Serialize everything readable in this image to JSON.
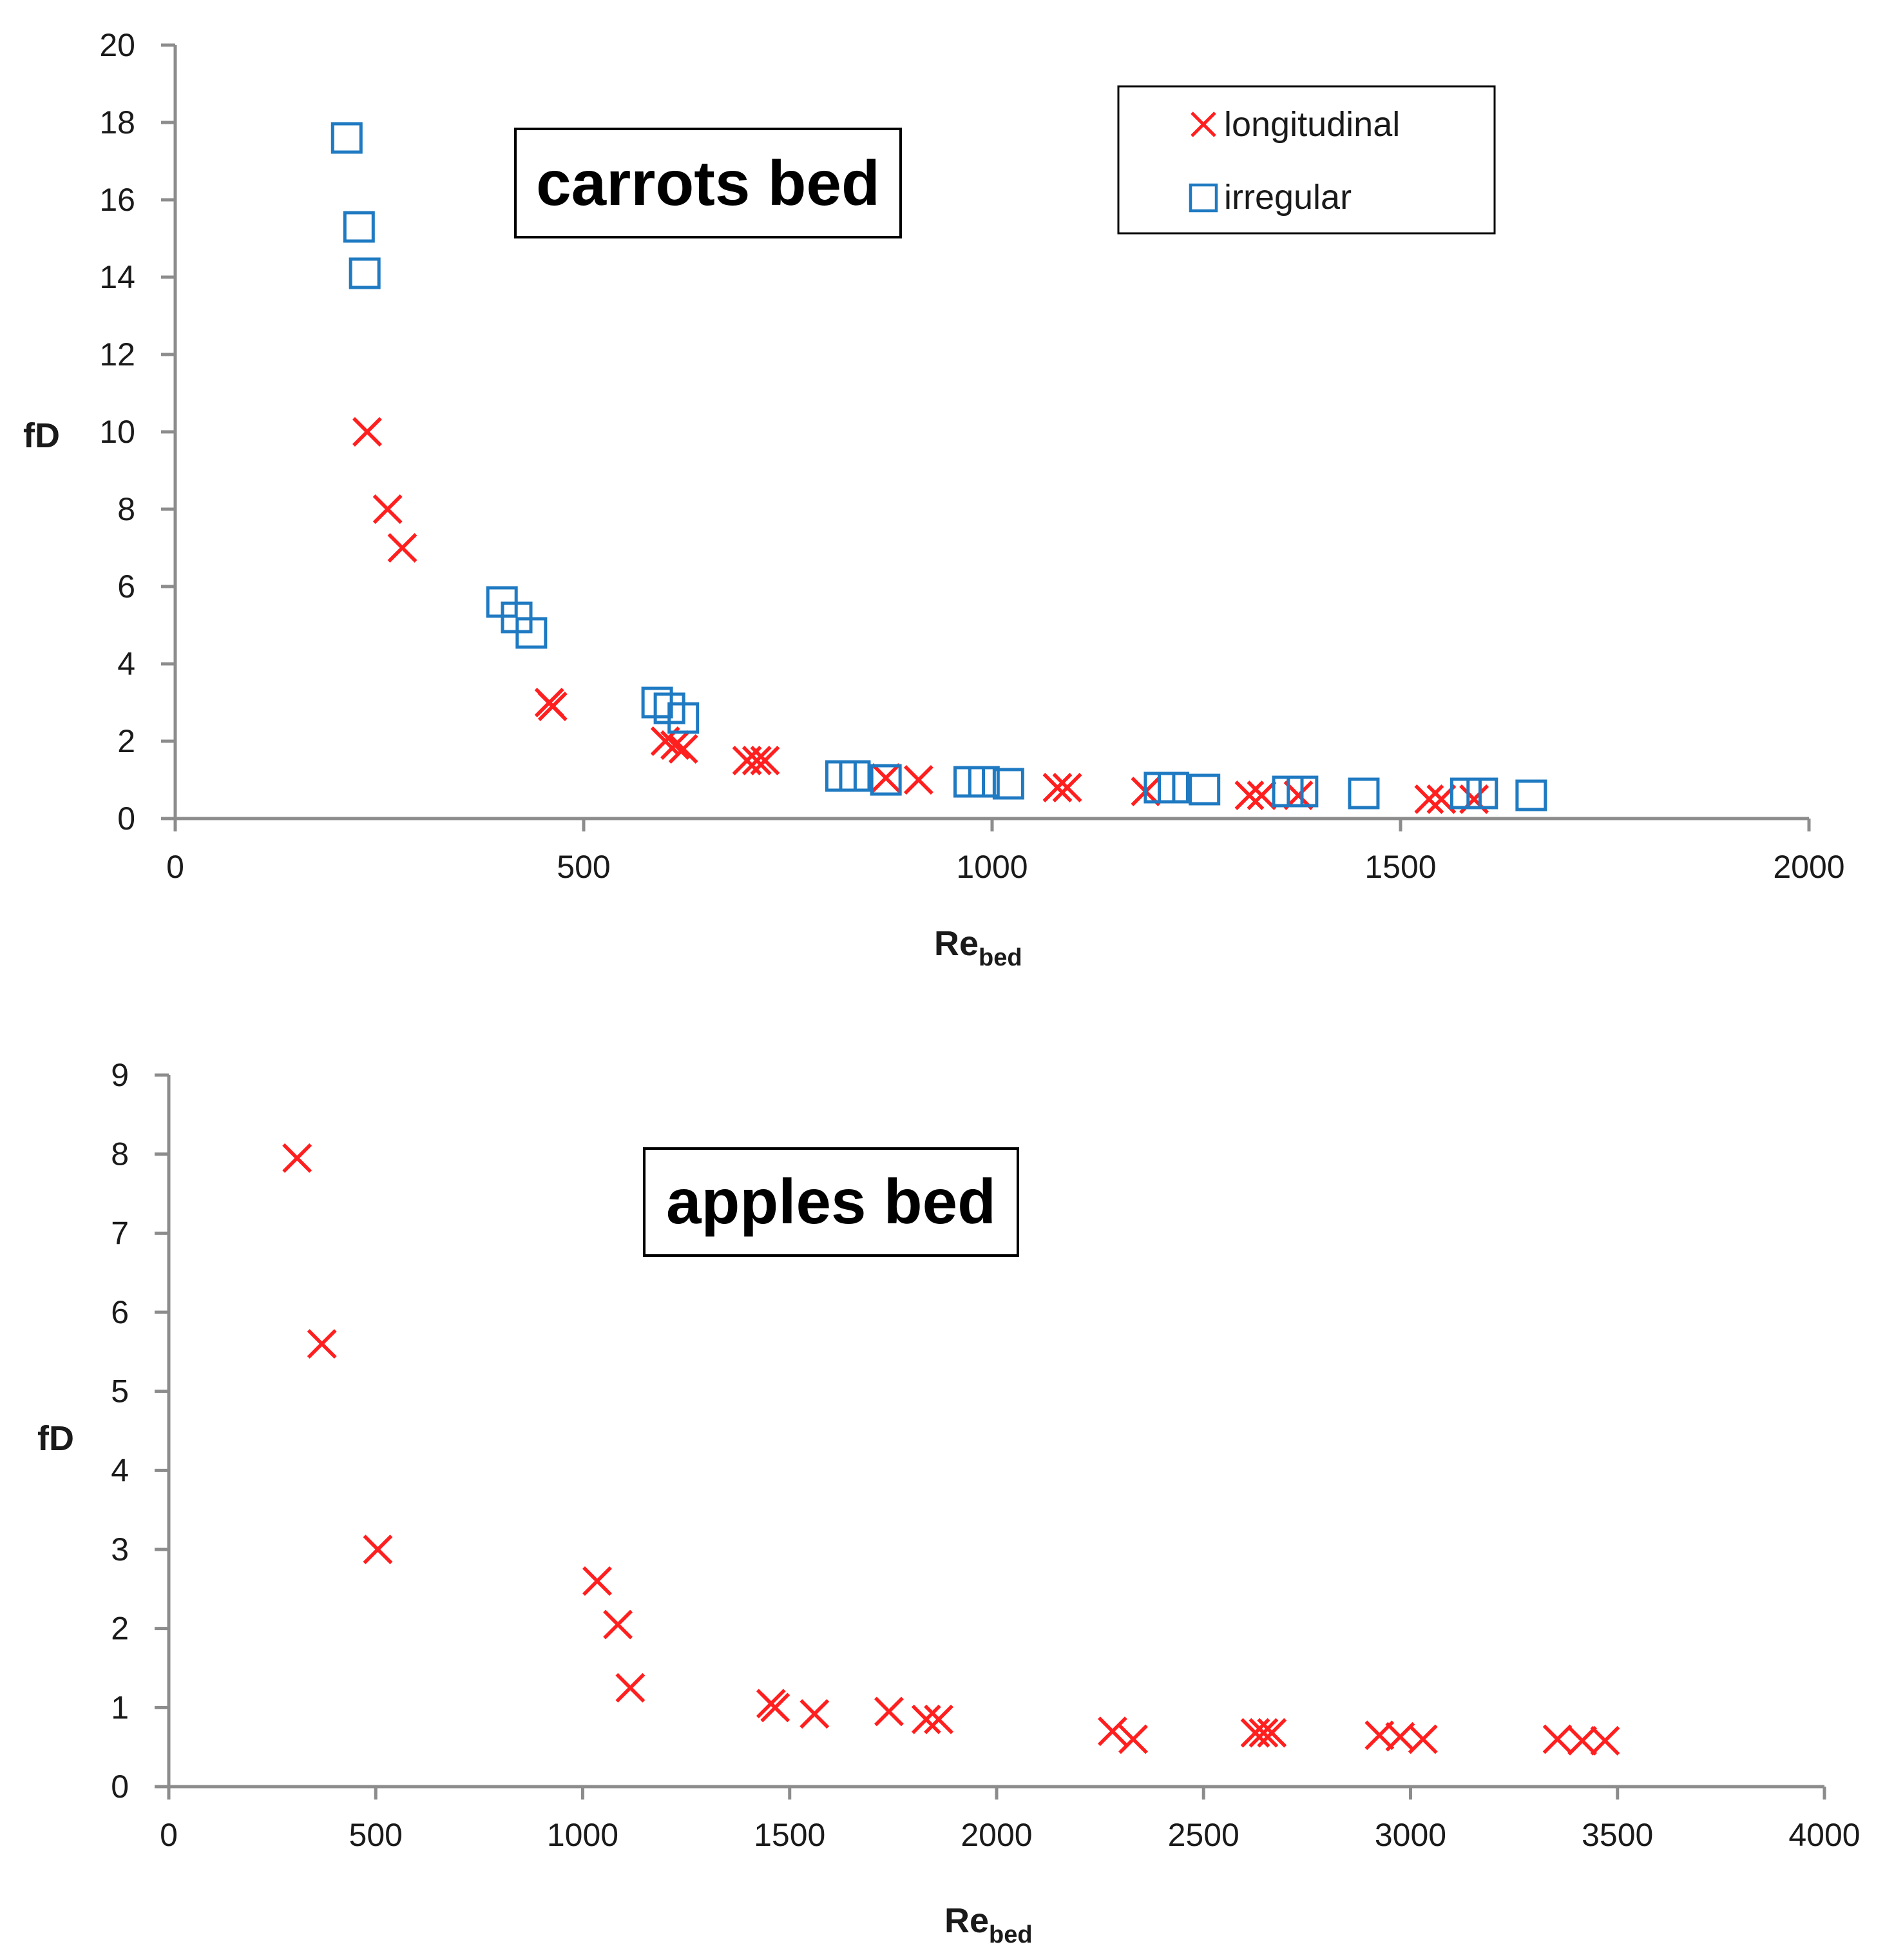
{
  "colors": {
    "longitudinal": "#ff1f1f",
    "irregular": "#1f7ac2",
    "axis": "#8c8c8c"
  },
  "chart_data": [
    {
      "type": "scatter",
      "title": "carrots bed",
      "xlabel": "Re",
      "xlabel_sub": "bed",
      "ylabel": "fD",
      "xlim": [
        0,
        2000
      ],
      "ylim": [
        0,
        20
      ],
      "xticks": [
        "0",
        "500",
        "1000",
        "1500",
        "2000"
      ],
      "yticks": [
        "0",
        "2",
        "4",
        "6",
        "8",
        "10",
        "12",
        "14",
        "16",
        "18",
        "20"
      ],
      "legend": {
        "position": "top-right",
        "entries": [
          "longitudinal",
          "irregular"
        ]
      },
      "series": [
        {
          "name": "longitudinal",
          "marker": "x",
          "points": [
            [
              235,
              10
            ],
            [
              260,
              8
            ],
            [
              278,
              7
            ],
            [
              458,
              3.0
            ],
            [
              462,
              2.9
            ],
            [
              600,
              2.0
            ],
            [
              612,
              1.9
            ],
            [
              622,
              1.8
            ],
            [
              700,
              1.5
            ],
            [
              712,
              1.5
            ],
            [
              722,
              1.5
            ],
            [
              870,
              1.05
            ],
            [
              910,
              1.0
            ],
            [
              1080,
              0.8
            ],
            [
              1092,
              0.8
            ],
            [
              1188,
              0.7
            ],
            [
              1315,
              0.6
            ],
            [
              1330,
              0.6
            ],
            [
              1375,
              0.6
            ],
            [
              1535,
              0.5
            ],
            [
              1550,
              0.5
            ],
            [
              1590,
              0.5
            ]
          ]
        },
        {
          "name": "irregular",
          "marker": "square",
          "points": [
            [
              210,
              17.6
            ],
            [
              225,
              15.3
            ],
            [
              232,
              14.1
            ],
            [
              400,
              5.6
            ],
            [
              418,
              5.2
            ],
            [
              436,
              4.8
            ],
            [
              590,
              3.0
            ],
            [
              605,
              2.85
            ],
            [
              622,
              2.6
            ],
            [
              815,
              1.1
            ],
            [
              832,
              1.1
            ],
            [
              870,
              1.0
            ],
            [
              972,
              0.95
            ],
            [
              990,
              0.95
            ],
            [
              1020,
              0.9
            ],
            [
              1205,
              0.8
            ],
            [
              1222,
              0.8
            ],
            [
              1260,
              0.75
            ],
            [
              1362,
              0.7
            ],
            [
              1380,
              0.7
            ],
            [
              1455,
              0.65
            ],
            [
              1580,
              0.65
            ],
            [
              1600,
              0.65
            ],
            [
              1660,
              0.6
            ]
          ]
        }
      ]
    },
    {
      "type": "scatter",
      "title": "apples bed",
      "xlabel": "Re",
      "xlabel_sub": "bed",
      "ylabel": "fD",
      "xlim": [
        0,
        4000
      ],
      "ylim": [
        0,
        9
      ],
      "xticks": [
        "0",
        "500",
        "1000",
        "1500",
        "2000",
        "2500",
        "3000",
        "3500",
        "4000"
      ],
      "yticks": [
        "0",
        "1",
        "2",
        "3",
        "4",
        "5",
        "6",
        "7",
        "8",
        "9"
      ],
      "series": [
        {
          "name": "longitudinal",
          "marker": "x",
          "points": [
            [
              310,
              7.95
            ],
            [
              370,
              5.6
            ],
            [
              505,
              3.0
            ],
            [
              1035,
              2.6
            ],
            [
              1085,
              2.05
            ],
            [
              1115,
              1.25
            ],
            [
              1455,
              1.05
            ],
            [
              1465,
              1.0
            ],
            [
              1560,
              0.92
            ],
            [
              1740,
              0.95
            ],
            [
              1830,
              0.85
            ],
            [
              1860,
              0.85
            ],
            [
              2280,
              0.7
            ],
            [
              2330,
              0.6
            ],
            [
              2625,
              0.68
            ],
            [
              2645,
              0.68
            ],
            [
              2665,
              0.68
            ],
            [
              2925,
              0.65
            ],
            [
              2975,
              0.63
            ],
            [
              3030,
              0.6
            ],
            [
              3355,
              0.6
            ],
            [
              3415,
              0.58
            ],
            [
              3470,
              0.58
            ]
          ]
        }
      ]
    }
  ]
}
